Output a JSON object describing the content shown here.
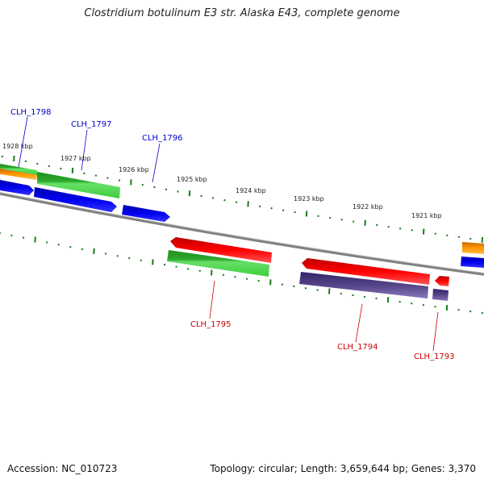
{
  "title": "Clostridium botulinum E3 str. Alaska E43, complete genome",
  "accession_text": "Accession: NC_010723",
  "topology_text": "Topology: circular; Length: 3,659,644 bp; Genes: 3,370",
  "scale_labels": [
    "1928 kbp",
    "1927 kbp",
    "1926 kbp",
    "1925 kbp",
    "1924 kbp",
    "1923 kbp",
    "1922 kbp",
    "1921 kbp"
  ],
  "gene_labels": {
    "top": [
      "CLH_1798",
      "CLH_1797",
      "CLH_1796"
    ],
    "bottom": [
      "CLH_1795",
      "CLH_1794",
      "CLH_1793"
    ]
  },
  "colors": {
    "blue_label": "#0000cc",
    "red_label": "#cc0000",
    "tick": "#1a7a1a",
    "backbone": "#808080",
    "green_gene": "#33cc33",
    "blue_gene": "#0000ee",
    "red_gene": "#ee0000",
    "purple_gene": "#554488",
    "orange_gene": "#ff9900"
  }
}
